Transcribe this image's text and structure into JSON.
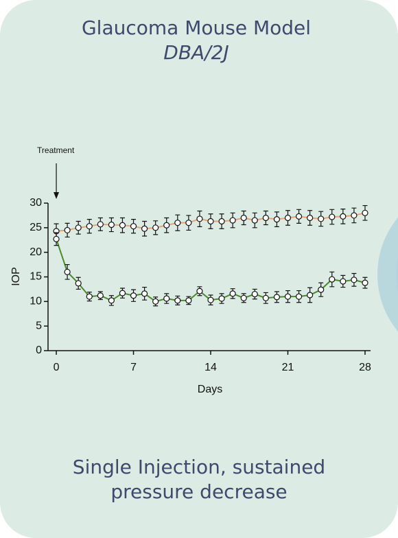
{
  "header": {
    "title": "Glaucoma Mouse Model",
    "subtitle": "DBA/2J"
  },
  "chart_data": {
    "type": "line",
    "x_label": "Days",
    "y_label": "IOP",
    "annotations": [
      {
        "text": "Treatment",
        "x": 0
      }
    ],
    "x": [
      0,
      1,
      2,
      3,
      4,
      5,
      6,
      7,
      8,
      9,
      10,
      11,
      12,
      13,
      14,
      15,
      16,
      17,
      18,
      19,
      20,
      21,
      22,
      23,
      24,
      25,
      26,
      27,
      28
    ],
    "series": [
      {
        "color": "#e8a06e",
        "values": [
          24.3,
          24.5,
          25,
          25.3,
          25.7,
          25.6,
          25.5,
          25.3,
          24.8,
          25,
          25.5,
          26,
          26,
          26.8,
          26.3,
          26.3,
          26.5,
          27,
          26.5,
          27,
          26.7,
          27,
          27.3,
          27,
          26.8,
          27.2,
          27.3,
          27.5,
          28
        ],
        "errors": [
          1.5,
          1.4,
          1.3,
          1.4,
          1.3,
          1.4,
          1.5,
          1.4,
          1.5,
          1.4,
          1.5,
          1.6,
          1.5,
          1.6,
          1.5,
          1.5,
          1.5,
          1.4,
          1.5,
          1.4,
          1.5,
          1.5,
          1.4,
          1.5,
          1.5,
          1.5,
          1.5,
          1.5,
          1.5
        ]
      },
      {
        "color": "#4a8a2a",
        "values": [
          22.7,
          16,
          13.7,
          11,
          11.2,
          10.2,
          11.7,
          11.2,
          11.6,
          10,
          10.6,
          10.2,
          10.2,
          12.1,
          10.3,
          10.6,
          11.6,
          10.7,
          11.5,
          10.7,
          10.9,
          11,
          11,
          11.3,
          12.4,
          14.5,
          14.1,
          14.4,
          13.8
        ],
        "errors": [
          1.3,
          1.5,
          1.2,
          0.9,
          0.8,
          1,
          1,
          1.2,
          1.3,
          0.9,
          1,
          0.9,
          0.8,
          0.9,
          1,
          1,
          1,
          0.9,
          1,
          1.1,
          1.1,
          1.2,
          1.2,
          1.5,
          1.4,
          1.5,
          1.2,
          1.3,
          1.1
        ]
      }
    ],
    "xlim": [
      -0.75,
      28.5
    ],
    "ylim": [
      0,
      30
    ],
    "xticks": [
      0,
      7,
      14,
      21,
      28
    ],
    "yticks": [
      0,
      5,
      10,
      15,
      20,
      25,
      30
    ]
  },
  "footer": {
    "line1": "Single Injection, sustained",
    "line2": "pressure decrease"
  }
}
